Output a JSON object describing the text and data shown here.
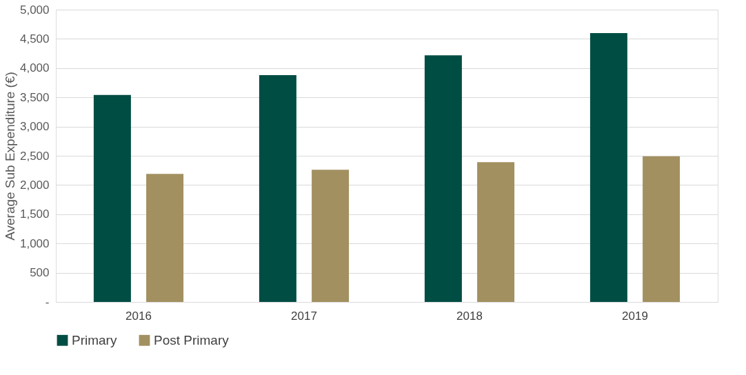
{
  "chart_data": {
    "type": "bar",
    "ylabel": "Average Sub Expenditure (€)",
    "categories": [
      "2016",
      "2017",
      "2018",
      "2019"
    ],
    "series": [
      {
        "name": "Primary",
        "color": "#004d43",
        "values": [
          3540,
          3880,
          4220,
          4600
        ]
      },
      {
        "name": "Post Primary",
        "color": "#a39060",
        "values": [
          2190,
          2260,
          2390,
          2490
        ]
      }
    ],
    "ylim": [
      0,
      5000
    ],
    "yticks": [
      {
        "value": 0,
        "label": "-"
      },
      {
        "value": 500,
        "label": "500"
      },
      {
        "value": 1000,
        "label": "1,000"
      },
      {
        "value": 1500,
        "label": "1,500"
      },
      {
        "value": 2000,
        "label": "2,000"
      },
      {
        "value": 2500,
        "label": "2,500"
      },
      {
        "value": 3000,
        "label": "3,000"
      },
      {
        "value": 3500,
        "label": "3,500"
      },
      {
        "value": 4000,
        "label": "4,000"
      },
      {
        "value": 4500,
        "label": "4,500"
      },
      {
        "value": 5000,
        "label": "5,000"
      }
    ],
    "grid": "y",
    "legend": "bottom"
  }
}
